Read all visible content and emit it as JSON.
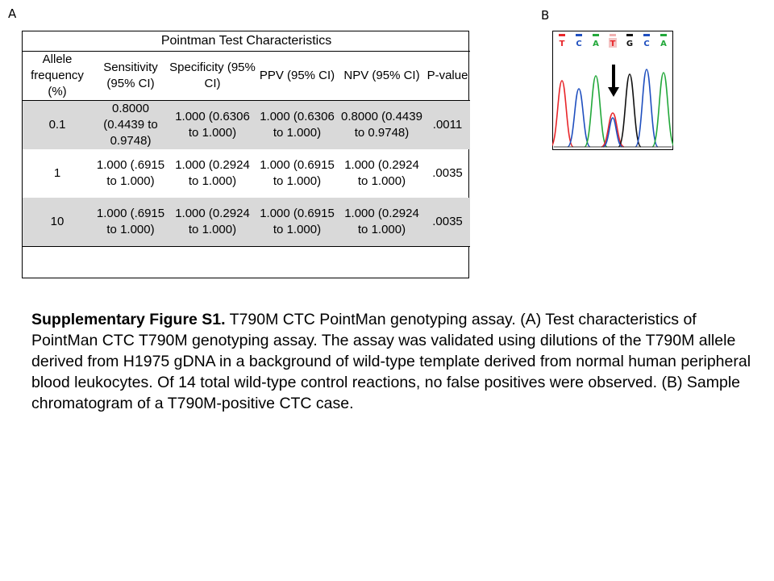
{
  "panel_a": {
    "label": "A",
    "table": {
      "title": "Pointman Test Characteristics",
      "headers": [
        "Allele frequency (%)",
        "Sensitivity (95% CI)",
        "Specificity (95% CI)",
        "PPV (95% CI)",
        "NPV (95% CI)",
        "P-value"
      ],
      "rows": [
        {
          "allele": "0.1",
          "sens": "0.8000 (0.4439 to 0.9748)",
          "spec": "1.000 (0.6306 to 1.000)",
          "ppv": "1.000 (0.6306 to 1.000)",
          "npv": "0.8000 (0.4439 to 0.9748)",
          "p": ".0011"
        },
        {
          "allele": "1",
          "sens": "1.000 (.6915 to 1.000)",
          "spec": "1.000 (0.2924 to 1.000)",
          "ppv": "1.000 (0.6915 to 1.000)",
          "npv": "1.000 (0.2924 to 1.000)",
          "p": ".0035"
        },
        {
          "allele": "10",
          "sens": "1.000 (.6915 to 1.000)",
          "spec": "1.000 (0.2924 to 1.000)",
          "ppv": "1.000 (0.6915 to 1.000)",
          "npv": "1.000 (0.2924 to 1.000)",
          "p": ".0035"
        }
      ]
    }
  },
  "panel_b": {
    "label": "B",
    "bases": [
      "T",
      "C",
      "A",
      "T",
      "G",
      "C",
      "A"
    ],
    "colors": {
      "T": "#e8262a",
      "C": "#1f4fbf",
      "A": "#22a83a",
      "G": "#111111"
    }
  },
  "caption": {
    "bold": "Supplementary Figure S1.",
    "text": " T790M CTC PointMan genotyping assay. (A) Test characteristics of PointMan CTC T790M genotyping assay. The assay was validated using dilutions of the T790M allele derived from H1975 gDNA in a background of wild-type template derived from normal human peripheral blood leukocytes. Of 14 total wild-type control reactions, no false positives were observed. (B) Sample chromatogram of a T790M-positive CTC case."
  }
}
